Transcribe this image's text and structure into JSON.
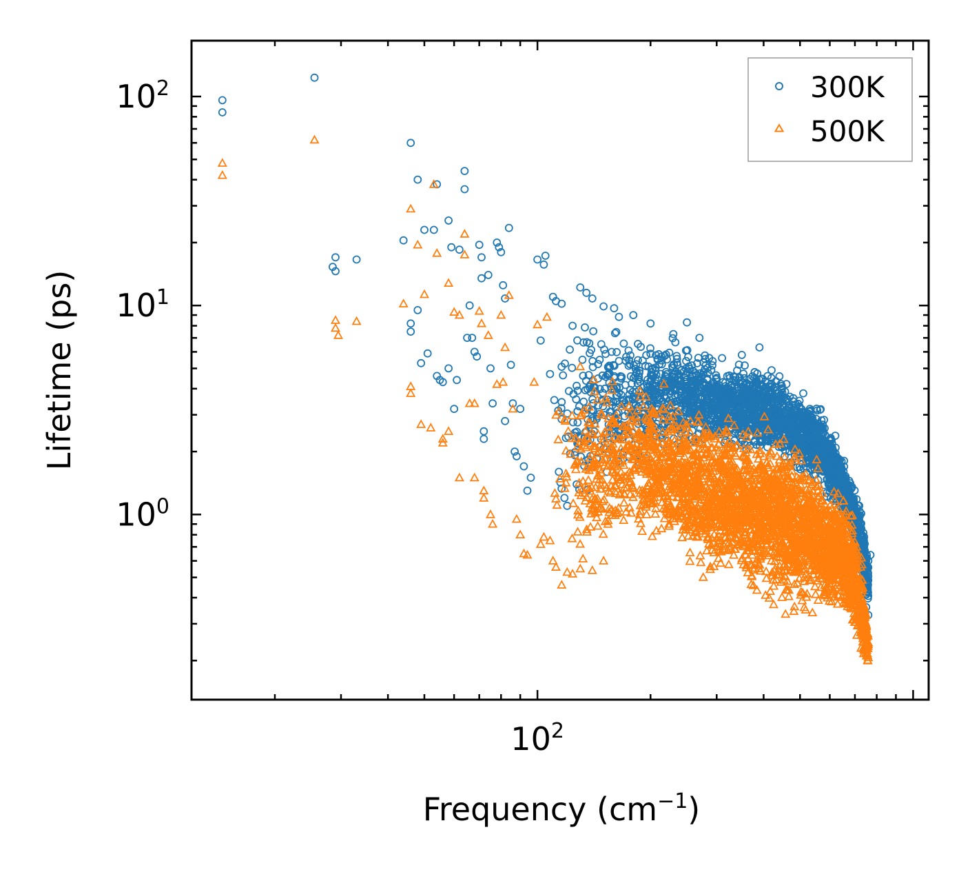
{
  "chart_data": {
    "type": "scatter",
    "title": "",
    "xlabel_base": "Frequency (cm",
    "xlabel_sup": "−1",
    "xlabel_close": ")",
    "ylabel": "Lifetime (ps)",
    "xscale": "log",
    "yscale": "log",
    "xlim": [
      12,
      1100
    ],
    "ylim": [
      0.13,
      185
    ],
    "x_ticks": [
      {
        "base": "10",
        "exp": "2",
        "value": 100
      }
    ],
    "y_ticks": [
      {
        "base": "10",
        "exp": "0",
        "value": 1
      },
      {
        "base": "10",
        "exp": "1",
        "value": 10
      },
      {
        "base": "10",
        "exp": "2",
        "value": 100
      }
    ],
    "legend_position": "top-right",
    "colors": {
      "300K": "#1f77b4",
      "500K": "#ff7f0e"
    },
    "series": [
      {
        "name": "300K",
        "marker": "circle",
        "note": "explicit low-frequency points; dense cloud from band ~110-900 cm-1",
        "points": [
          [
            14.5,
            96
          ],
          [
            14.5,
            84
          ],
          [
            25.5,
            123
          ],
          [
            28.5,
            15.3
          ],
          [
            29,
            14.6
          ],
          [
            29,
            17
          ],
          [
            33,
            16.6
          ],
          [
            44,
            20.5
          ],
          [
            46,
            60
          ],
          [
            46,
            8.2
          ],
          [
            46,
            7.5
          ],
          [
            48,
            40
          ],
          [
            48,
            9.5
          ],
          [
            49,
            5.3
          ],
          [
            50,
            23
          ],
          [
            51,
            5.9
          ],
          [
            53,
            23
          ],
          [
            54,
            38
          ],
          [
            54,
            4.6
          ],
          [
            55,
            4.4
          ],
          [
            56,
            4.3
          ],
          [
            58,
            25.5
          ],
          [
            58,
            5
          ],
          [
            59,
            19
          ],
          [
            60,
            3.2
          ],
          [
            61,
            4.4
          ],
          [
            62,
            18.5
          ],
          [
            64,
            44
          ],
          [
            64,
            36
          ],
          [
            65,
            7
          ],
          [
            66,
            10
          ],
          [
            67,
            7
          ],
          [
            68,
            6
          ],
          [
            69,
            5.7
          ],
          [
            70,
            19.5
          ],
          [
            71,
            17
          ],
          [
            71,
            13.5
          ],
          [
            72,
            2.5
          ],
          [
            72,
            2.3
          ],
          [
            74,
            14
          ],
          [
            75,
            5
          ],
          [
            76,
            3.4
          ],
          [
            78,
            20
          ],
          [
            79,
            19
          ],
          [
            80,
            18
          ],
          [
            81,
            12.5
          ],
          [
            82,
            10.8
          ],
          [
            82,
            2.8
          ],
          [
            84,
            23.5
          ],
          [
            85,
            5.2
          ],
          [
            86,
            3.4
          ],
          [
            87,
            2.0
          ],
          [
            88,
            1.9
          ],
          [
            90,
            3.2
          ],
          [
            92,
            1.7
          ],
          [
            94,
            1.3
          ],
          [
            96,
            1.5
          ],
          [
            100,
            16.6
          ],
          [
            102,
            6.8
          ],
          [
            104,
            15.7
          ],
          [
            105,
            17.3
          ],
          [
            108,
            4.7
          ],
          [
            110,
            11
          ],
          [
            112,
            10.5
          ],
          [
            114,
            1.6
          ],
          [
            116,
            10.2
          ],
          [
            118,
            1.2
          ],
          [
            120,
            1.1
          ],
          [
            124,
            8
          ],
          [
            130,
            12.2
          ],
          [
            135,
            11.5
          ],
          [
            140,
            10.8
          ],
          [
            150,
            9.9
          ],
          [
            160,
            9.7
          ],
          [
            180,
            9.0
          ],
          [
            200,
            8.2
          ],
          [
            230,
            7.3
          ],
          [
            250,
            8.3
          ],
          [
            270,
            7.0
          ],
          [
            310,
            5.6
          ],
          [
            350,
            5.8
          ],
          [
            390,
            6.3
          ],
          [
            420,
            4.9
          ],
          [
            480,
            3.6
          ],
          [
            510,
            3.8
          ],
          [
            560,
            2.6
          ],
          [
            620,
            1.6
          ],
          [
            660,
            1.3
          ],
          [
            700,
            0.75
          ],
          [
            720,
            0.62
          ],
          [
            740,
            0.5
          ],
          [
            750,
            0.36
          ],
          [
            760,
            0.6
          ],
          [
            760,
            0.33
          ],
          [
            770,
            0.64
          ]
        ],
        "band": [
          [
            110,
            0.85,
            11
          ],
          [
            130,
            0.95,
            12
          ],
          [
            160,
            1.2,
            10
          ],
          [
            200,
            1.5,
            8.5
          ],
          [
            240,
            1.8,
            7.5
          ],
          [
            280,
            1.9,
            6.5
          ],
          [
            320,
            2.0,
            5.5
          ],
          [
            380,
            1.9,
            5.5
          ],
          [
            440,
            1.7,
            5.0
          ],
          [
            500,
            1.5,
            4.0
          ],
          [
            560,
            1.3,
            3.5
          ],
          [
            620,
            1.0,
            2.6
          ],
          [
            680,
            0.8,
            1.6
          ],
          [
            720,
            0.5,
            1.3
          ],
          [
            760,
            0.32,
            0.64
          ]
        ]
      },
      {
        "name": "500K",
        "marker": "triangle",
        "note": "explicit low-frequency points; dense cloud from band ~110-900 cm-1",
        "points": [
          [
            14.5,
            48
          ],
          [
            14.5,
            42
          ],
          [
            25.5,
            62
          ],
          [
            29,
            8.5
          ],
          [
            29,
            7.8
          ],
          [
            29.5,
            7.2
          ],
          [
            33,
            8.4
          ],
          [
            44,
            10.2
          ],
          [
            46,
            29
          ],
          [
            46,
            4.1
          ],
          [
            46,
            3.8
          ],
          [
            48,
            19.5
          ],
          [
            49,
            2.7
          ],
          [
            50,
            11.3
          ],
          [
            52,
            2.6
          ],
          [
            53,
            38
          ],
          [
            54,
            17.8
          ],
          [
            56,
            2.3
          ],
          [
            56,
            2.2
          ],
          [
            58,
            12.8
          ],
          [
            58,
            2.5
          ],
          [
            60,
            9.3
          ],
          [
            62,
            9.0
          ],
          [
            62,
            1.5
          ],
          [
            64,
            22
          ],
          [
            64,
            17.5
          ],
          [
            66,
            3.4
          ],
          [
            68,
            3.4
          ],
          [
            68,
            1.5
          ],
          [
            70,
            9.4
          ],
          [
            71,
            8.2
          ],
          [
            72,
            1.3
          ],
          [
            72,
            1.2
          ],
          [
            74,
            7.2
          ],
          [
            75,
            1.0
          ],
          [
            76,
            0.9
          ],
          [
            78,
            4.2
          ],
          [
            80,
            9.0
          ],
          [
            81,
            4.3
          ],
          [
            82,
            6.3
          ],
          [
            84,
            11.2
          ],
          [
            86,
            3.2
          ],
          [
            88,
            0.95
          ],
          [
            90,
            0.8
          ],
          [
            92,
            0.65
          ],
          [
            94,
            0.64
          ],
          [
            98,
            4.3
          ],
          [
            100,
            8.1
          ],
          [
            102,
            0.72
          ],
          [
            104,
            0.78
          ],
          [
            106,
            8.8
          ],
          [
            108,
            0.75
          ],
          [
            110,
            0.6
          ],
          [
            112,
            0.56
          ],
          [
            116,
            0.46
          ],
          [
            120,
            0.53
          ],
          [
            124,
            0.52
          ],
          [
            130,
            0.55
          ],
          [
            140,
            0.54
          ],
          [
            150,
            0.6
          ]
        ],
        "band": [
          [
            110,
            0.46,
            6
          ],
          [
            130,
            0.5,
            6
          ],
          [
            160,
            0.56,
            5
          ],
          [
            200,
            0.65,
            4.5
          ],
          [
            240,
            0.55,
            4.2
          ],
          [
            260,
            0.45,
            4.0
          ],
          [
            280,
            0.4,
            3.5
          ],
          [
            320,
            0.45,
            3.3
          ],
          [
            360,
            0.38,
            3.2
          ],
          [
            420,
            0.32,
            3.0
          ],
          [
            480,
            0.3,
            2.6
          ],
          [
            540,
            0.32,
            2.2
          ],
          [
            600,
            0.3,
            1.7
          ],
          [
            660,
            0.3,
            1.3
          ],
          [
            720,
            0.2,
            0.9
          ],
          [
            760,
            0.17,
            0.28
          ]
        ]
      }
    ]
  }
}
